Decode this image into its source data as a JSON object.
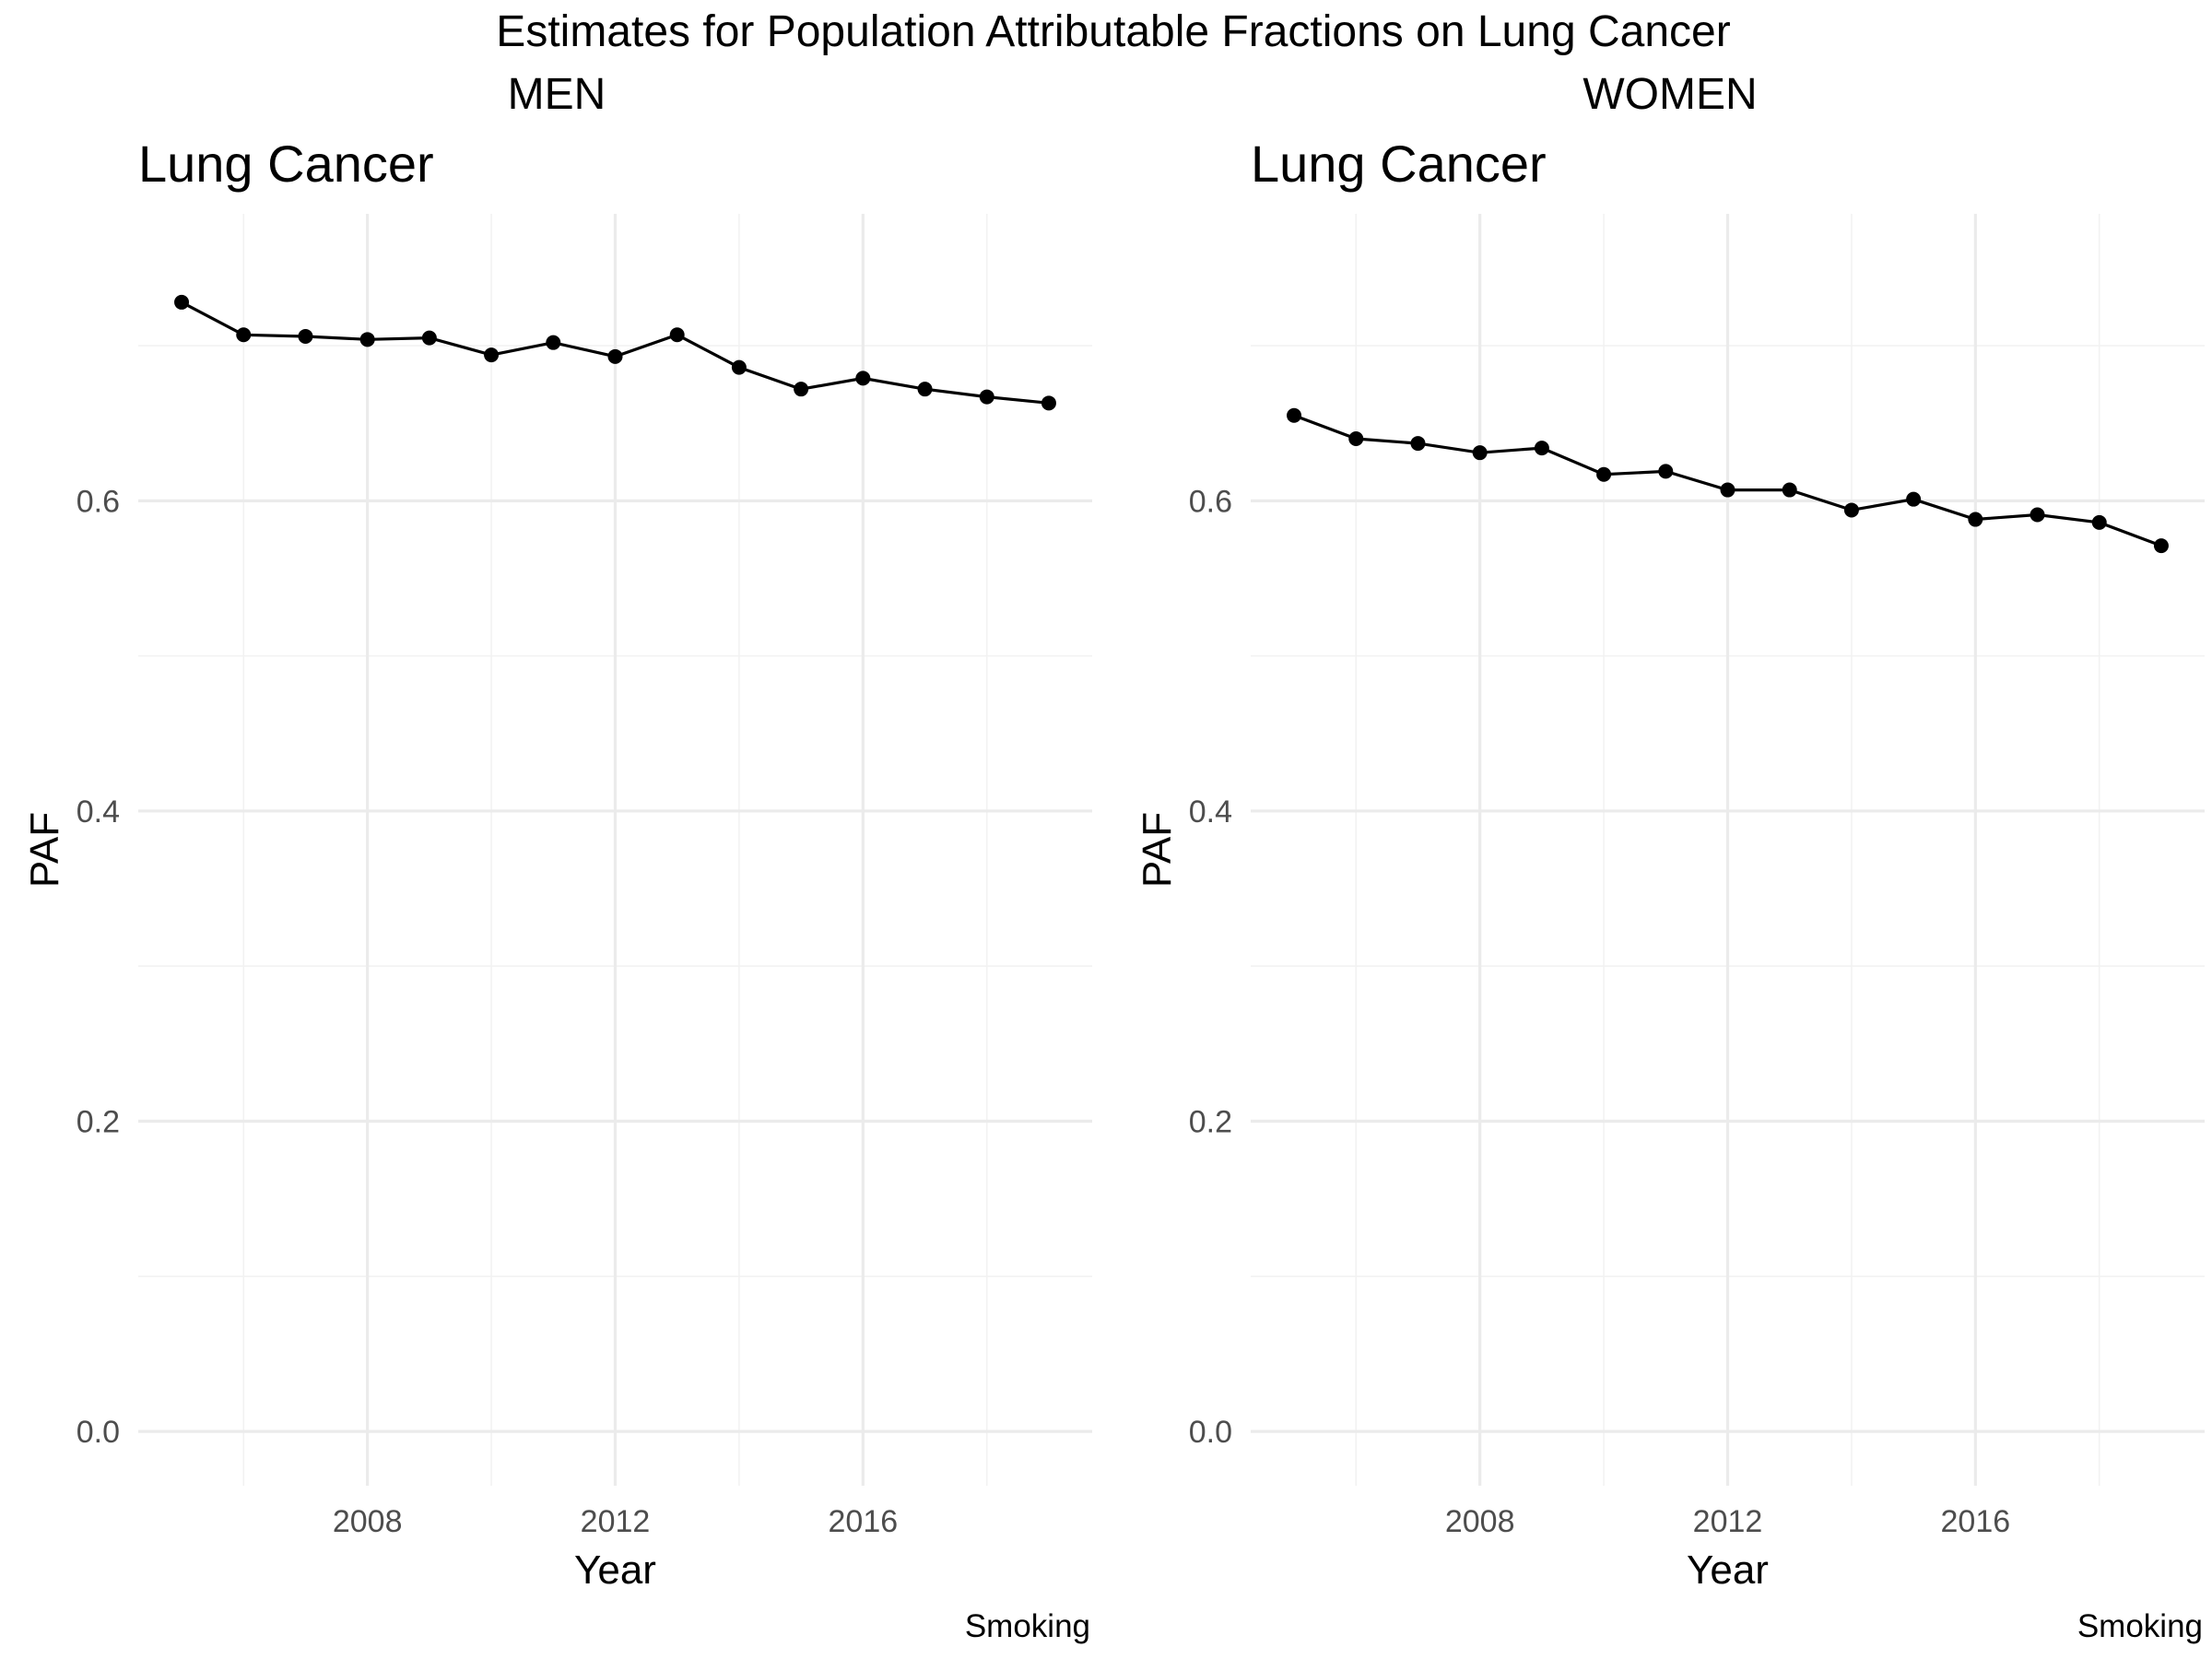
{
  "title": "Estimates for Population Attributable Fractions on Lung Cancer",
  "chart_data": [
    {
      "type": "line",
      "group_title": "MEN",
      "title": "Lung Cancer",
      "xlabel": "Year",
      "ylabel": "PAF",
      "caption": "Smoking",
      "grid": true,
      "xlim": [
        2004.3,
        2019.7
      ],
      "ylim": [
        -0.035,
        0.785
      ],
      "x_ticks": [
        2008,
        2012,
        2016
      ],
      "y_ticks": [
        0.0,
        0.2,
        0.4,
        0.6
      ],
      "x_tick_labels": [
        "2008",
        "2012",
        "2016"
      ],
      "y_tick_labels": [
        "0.0",
        "0.2",
        "0.4",
        "0.6"
      ],
      "series": [
        {
          "x": [
            2005,
            2006,
            2007,
            2008,
            2009,
            2010,
            2011,
            2012,
            2013,
            2014,
            2015,
            2016,
            2017,
            2018,
            2019
          ],
          "values": [
            0.728,
            0.707,
            0.706,
            0.704,
            0.705,
            0.694,
            0.702,
            0.693,
            0.707,
            0.686,
            0.672,
            0.679,
            0.672,
            0.667,
            0.663
          ]
        }
      ]
    },
    {
      "type": "line",
      "group_title": "WOMEN",
      "title": "Lung Cancer",
      "xlabel": "Year",
      "ylabel": "PAF",
      "caption": "Smoking",
      "grid": true,
      "xlim": [
        2004.3,
        2019.7
      ],
      "ylim": [
        -0.035,
        0.785
      ],
      "x_ticks": [
        2008,
        2012,
        2016
      ],
      "y_ticks": [
        0.0,
        0.2,
        0.4,
        0.6
      ],
      "x_tick_labels": [
        "2008",
        "2012",
        "2016"
      ],
      "y_tick_labels": [
        "0.0",
        "0.2",
        "0.4",
        "0.6"
      ],
      "series": [
        {
          "x": [
            2005,
            2006,
            2007,
            2008,
            2009,
            2010,
            2011,
            2012,
            2013,
            2014,
            2015,
            2016,
            2017,
            2018,
            2019
          ],
          "values": [
            0.655,
            0.64,
            0.637,
            0.631,
            0.634,
            0.617,
            0.619,
            0.607,
            0.607,
            0.594,
            0.601,
            0.588,
            0.591,
            0.586,
            0.571
          ]
        }
      ]
    }
  ]
}
